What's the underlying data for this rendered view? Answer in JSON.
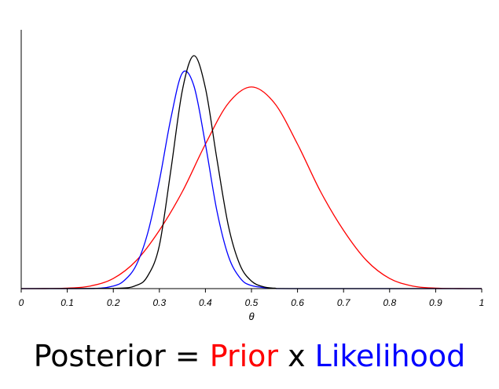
{
  "chart_data": {
    "type": "line",
    "title": "",
    "xlabel": "θ",
    "ylabel": "",
    "xlim": [
      0,
      1
    ],
    "ylim": [
      0,
      1.08
    ],
    "grid": false,
    "x_ticks": [
      "0",
      "0.1",
      "0.2",
      "0.3",
      "0.4",
      "0.5",
      "0.6",
      "0.7",
      "0.8",
      "0.9",
      "1"
    ],
    "x_tick_values": [
      0,
      0.1,
      0.2,
      0.3,
      0.4,
      0.5,
      0.6,
      0.7,
      0.8,
      0.9,
      1
    ],
    "series": [
      {
        "color": "#ff0000",
        "x": [
          0,
          0.05,
          0.1,
          0.15,
          0.2,
          0.25,
          0.3,
          0.35,
          0.4,
          0.45,
          0.5,
          0.55,
          0.6,
          0.65,
          0.7,
          0.75,
          0.8,
          0.85,
          0.9,
          0.95,
          1
        ],
        "values": [
          0,
          0.0002,
          0.002,
          0.012,
          0.047,
          0.13,
          0.27,
          0.45,
          0.67,
          0.86,
          0.935,
          0.86,
          0.67,
          0.45,
          0.27,
          0.13,
          0.047,
          0.012,
          0.002,
          0.0002,
          0
        ]
      },
      {
        "color": "#0000ff",
        "x": [
          0,
          0.15,
          0.2,
          0.225,
          0.25,
          0.275,
          0.3,
          0.325,
          0.35,
          0.375,
          0.4,
          0.425,
          0.45,
          0.475,
          0.5,
          0.55,
          0.6,
          1
        ],
        "values": [
          0,
          0,
          0.012,
          0.04,
          0.11,
          0.26,
          0.5,
          0.79,
          1.0,
          0.94,
          0.67,
          0.36,
          0.15,
          0.05,
          0.014,
          0.001,
          0,
          0
        ]
      },
      {
        "color": "#000000",
        "x": [
          0,
          0.2,
          0.25,
          0.275,
          0.3,
          0.325,
          0.35,
          0.375,
          0.4,
          0.425,
          0.45,
          0.475,
          0.5,
          0.525,
          0.55,
          0.6,
          1
        ],
        "values": [
          0,
          0.001,
          0.015,
          0.06,
          0.2,
          0.55,
          0.92,
          1.08,
          0.93,
          0.6,
          0.29,
          0.11,
          0.035,
          0.009,
          0.002,
          0,
          0
        ]
      }
    ]
  },
  "caption": {
    "posterior": "Posterior",
    "equals": " = ",
    "prior": "Prior",
    "times": " x ",
    "likelihood": "Likelihood",
    "colors": {
      "posterior": "#000000",
      "prior": "#ff0000",
      "likelihood": "#0000ff"
    }
  }
}
